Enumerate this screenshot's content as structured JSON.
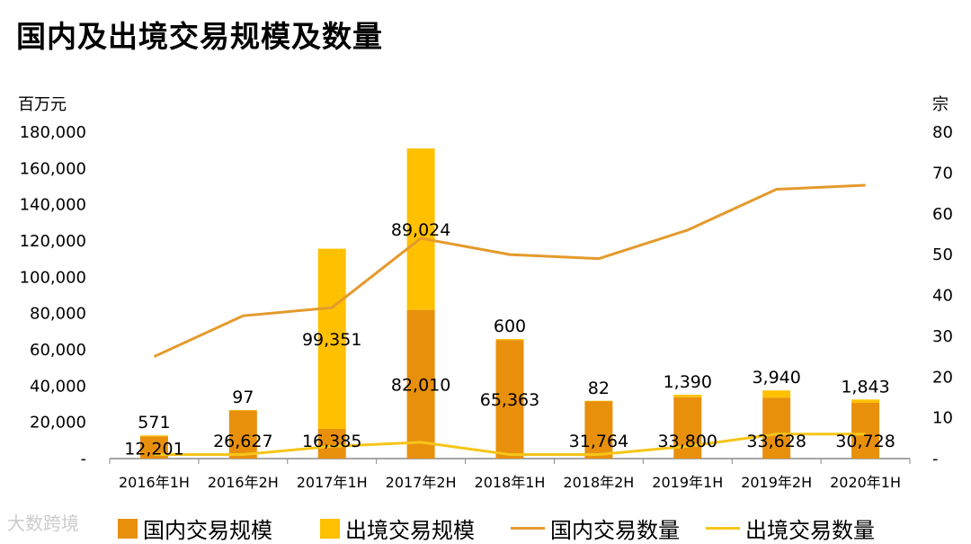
{
  "title": "国内及出境交易规模及数量",
  "watermark": "大数跨境",
  "colors": {
    "domestic_bar": "#E8900C",
    "outbound_bar": "#FFC000",
    "domestic_line": "#E49A2C",
    "outbound_line": "#F5C518",
    "axis": "#888888"
  },
  "chart_data": {
    "type": "bar",
    "title": "国内及出境交易规模及数量",
    "y_left_label": "百万元",
    "y_right_label": "宗",
    "y_left_lim": [
      0,
      180000
    ],
    "y_right_lim": [
      0,
      80
    ],
    "y_left_ticks": [
      "-",
      "20,000",
      "40,000",
      "60,000",
      "80,000",
      "100,000",
      "120,000",
      "140,000",
      "160,000",
      "180,000"
    ],
    "y_right_ticks": [
      "-",
      "10",
      "20",
      "30",
      "40",
      "50",
      "60",
      "70",
      "80"
    ],
    "categories": [
      "2016年1H",
      "2016年2H",
      "2017年1H",
      "2017年2H",
      "2018年1H",
      "2018年2H",
      "2019年1H",
      "2019年2H",
      "2020年1H"
    ],
    "grid": false,
    "legend_position": "bottom",
    "series": [
      {
        "name": "国内交易规模",
        "type": "stacked-bar",
        "axis": "left",
        "values": [
          12201,
          26627,
          16385,
          82010,
          65363,
          31764,
          33800,
          33628,
          30728
        ],
        "labels": [
          "12,201",
          "26,627",
          "16,385",
          "82,010",
          "65,363",
          "31,764",
          "33,800",
          "33,628",
          "30,728"
        ]
      },
      {
        "name": "出境交易规模",
        "type": "stacked-bar",
        "axis": "left",
        "values": [
          571,
          97,
          99351,
          89024,
          600,
          82,
          1390,
          3940,
          1843
        ],
        "labels": [
          "571",
          "97",
          "99,351",
          "89,024",
          "600",
          "82",
          "1,390",
          "3,940",
          "1,843"
        ]
      },
      {
        "name": "国内交易数量",
        "type": "line",
        "axis": "right",
        "values": [
          25,
          35,
          37,
          54,
          50,
          49,
          56,
          66,
          67
        ]
      },
      {
        "name": "出境交易数量",
        "type": "line",
        "axis": "right",
        "values": [
          1,
          1,
          3,
          4,
          1,
          1,
          3,
          6,
          6
        ]
      }
    ]
  }
}
